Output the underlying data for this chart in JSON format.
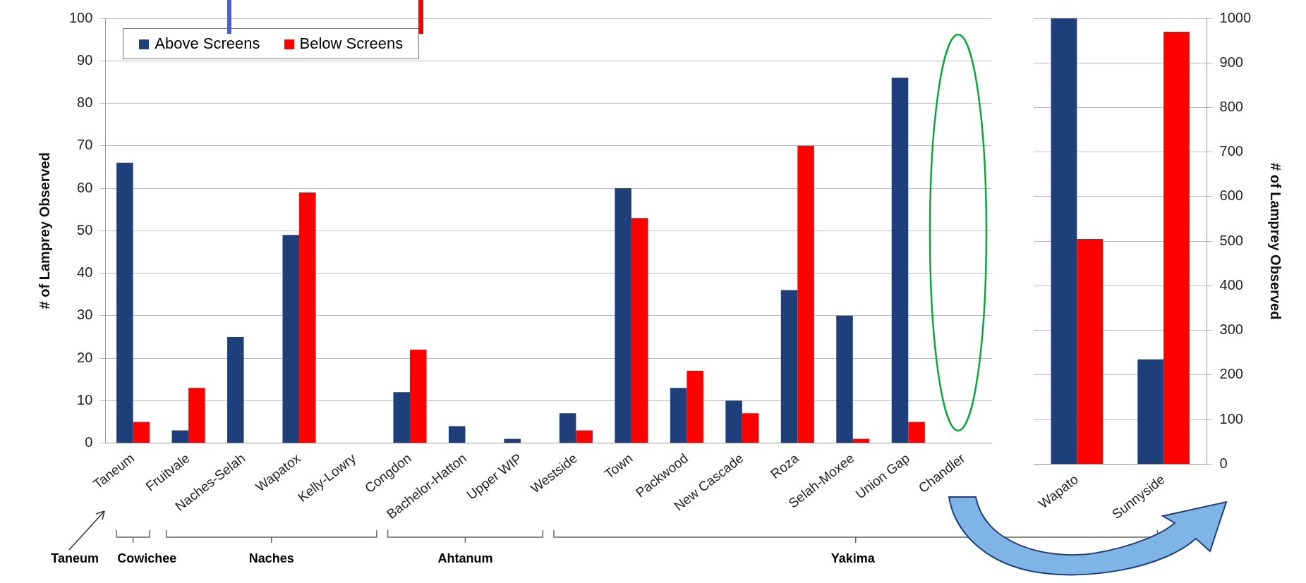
{
  "chart_data": [
    {
      "type": "bar",
      "categories": [
        "Taneum",
        "Fruitvale",
        "Naches-Selah",
        "Wapatox",
        "Kelly-Lowry",
        "Congdon",
        "Bachelor-Hatton",
        "Upper WIP",
        "Westside",
        "Town",
        "Packwood",
        "New Cascade",
        "Roza",
        "Selah-Moxee",
        "Union Gap",
        "Chandler"
      ],
      "series": [
        {
          "name": "Above Screens",
          "color": "#1f3f7a",
          "values": [
            66,
            3,
            25,
            49,
            0,
            12,
            4,
            1,
            7,
            60,
            13,
            10,
            36,
            30,
            86,
            0
          ]
        },
        {
          "name": "Below Screens",
          "color": "#ff0000",
          "values": [
            5,
            13,
            0,
            59,
            0,
            22,
            0,
            0,
            3,
            53,
            17,
            7,
            70,
            1,
            5,
            0
          ]
        }
      ],
      "ylabel": "# of Lamprey Observed",
      "ylim": [
        0,
        100
      ],
      "yticks": [
        0,
        10,
        20,
        30,
        40,
        50,
        60,
        70,
        80,
        90,
        100
      ],
      "grid": "y",
      "legend": "top left",
      "annotations": [
        "Taneum",
        "Cowichee",
        "Naches",
        "Ahtanum",
        "Yakima"
      ]
    },
    {
      "type": "bar",
      "categories": [
        "Wapato",
        "Sunnyside"
      ],
      "series": [
        {
          "color": "#1f3f7a",
          "axis": "y2",
          "values": [
            1000,
            235
          ]
        },
        {
          "color": "#ff0000",
          "axis": "y2",
          "values": [
            505,
            970
          ]
        }
      ],
      "y2label": "# of Lamprey Observed",
      "y2lim": [
        0,
        1000
      ],
      "y2ticks": [
        0,
        100,
        200,
        300,
        400,
        500,
        600,
        700,
        800,
        900,
        1000
      ],
      "grid": "y"
    }
  ]
}
